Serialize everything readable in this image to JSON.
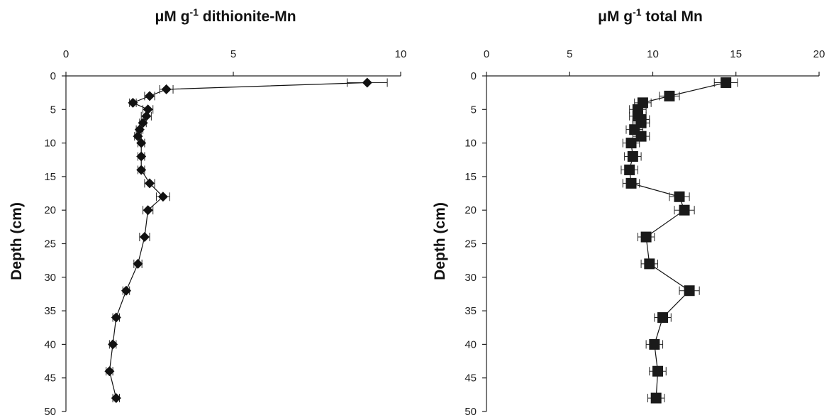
{
  "chart_data": [
    {
      "type": "scatter",
      "title_main": "μM g",
      "title_sup": "-1",
      "title_rest": " dithionite-Mn",
      "xlabel": "",
      "ylabel": "Depth (cm)",
      "xlim": [
        0,
        10
      ],
      "ylim": [
        0,
        50
      ],
      "x_ticks": [
        "0",
        "5",
        "10"
      ],
      "y_ticks": [
        "0",
        "5",
        "10",
        "15",
        "20",
        "25",
        "30",
        "35",
        "40",
        "45",
        "50"
      ],
      "marker": "diamond",
      "series": [
        {
          "x": [
            9.0,
            3.0,
            2.5,
            2.0,
            2.45,
            2.4,
            2.3,
            2.2,
            2.15,
            2.25,
            2.25,
            2.25,
            2.5,
            2.9,
            2.45,
            2.35,
            2.15,
            1.8,
            1.5,
            1.4,
            1.3,
            1.5
          ],
          "y": [
            1,
            2,
            3,
            4,
            5,
            6,
            7,
            8,
            9,
            10,
            12,
            14,
            16,
            18,
            20,
            24,
            28,
            32,
            36,
            40,
            44,
            48
          ],
          "err": [
            0.6,
            0.2,
            0.15,
            0.1,
            0.15,
            0.15,
            0.1,
            0.1,
            0.1,
            0.1,
            0.1,
            0.1,
            0.15,
            0.2,
            0.15,
            0.15,
            0.12,
            0.1,
            0.1,
            0.1,
            0.1,
            0.1
          ]
        }
      ]
    },
    {
      "type": "scatter",
      "title_main": "μM g",
      "title_sup": "-1",
      "title_rest": " total Mn",
      "xlabel": "",
      "ylabel": "Depth (cm)",
      "xlim": [
        0,
        20
      ],
      "ylim": [
        0,
        50
      ],
      "x_ticks": [
        "0",
        "5",
        "10",
        "15",
        "20"
      ],
      "y_ticks": [
        "0",
        "5",
        "10",
        "15",
        "20",
        "25",
        "30",
        "35",
        "40",
        "45",
        "50"
      ],
      "marker": "square",
      "series": [
        {
          "x": [
            14.4,
            11.0,
            9.4,
            9.1,
            9.1,
            9.3,
            9.3,
            8.9,
            9.3,
            8.7,
            8.8,
            8.6,
            8.7,
            11.6,
            11.9,
            9.6,
            9.8,
            12.2,
            10.6,
            10.1,
            10.3,
            10.2
          ],
          "y": [
            1,
            3,
            4,
            5,
            6,
            6.5,
            7,
            8,
            9,
            10,
            12,
            14,
            16,
            18,
            20,
            24,
            28,
            32,
            36,
            40,
            44,
            48
          ],
          "err": [
            0.7,
            0.6,
            0.5,
            0.5,
            0.5,
            0.5,
            0.5,
            0.5,
            0.5,
            0.5,
            0.5,
            0.5,
            0.5,
            0.6,
            0.6,
            0.5,
            0.5,
            0.6,
            0.5,
            0.5,
            0.5,
            0.5
          ]
        }
      ]
    }
  ]
}
